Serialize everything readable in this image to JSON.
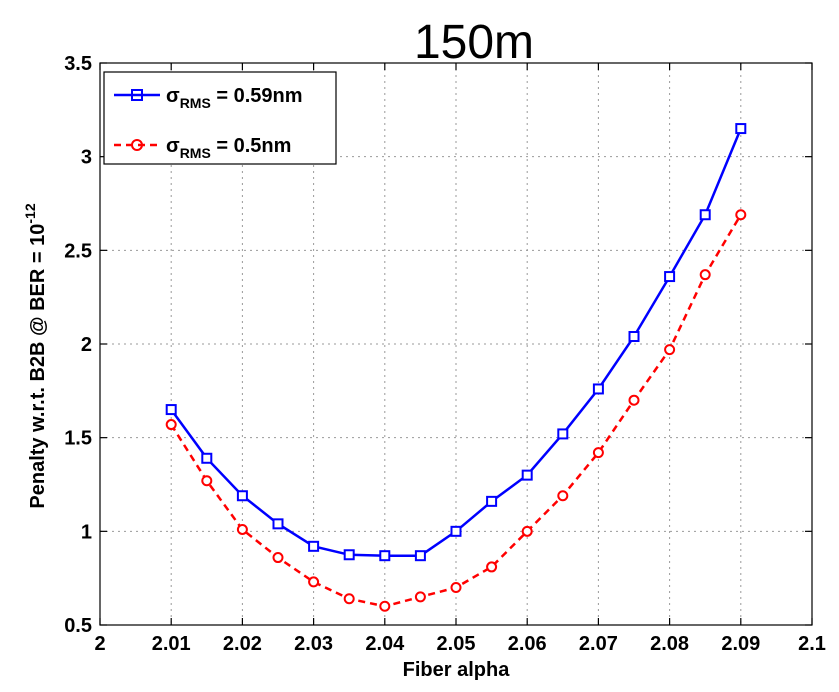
{
  "chart_data": {
    "type": "line",
    "title": "150m",
    "xlabel": "Fiber alpha",
    "ylabel": {
      "prefix": "Penalty w.r.t. B2B @ BER = 10",
      "exponent": "-12"
    },
    "xlim": [
      2.0,
      2.1
    ],
    "ylim": [
      0.5,
      3.5
    ],
    "xticks": [
      2.0,
      2.01,
      2.02,
      2.03,
      2.04,
      2.05,
      2.06,
      2.07,
      2.08,
      2.09,
      2.1
    ],
    "xtick_labels": [
      "2",
      "2.01",
      "2.02",
      "2.03",
      "2.04",
      "2.05",
      "2.06",
      "2.07",
      "2.08",
      "2.09",
      "2.1"
    ],
    "yticks": [
      0.5,
      1.0,
      1.5,
      2.0,
      2.5,
      3.0,
      3.5
    ],
    "ytick_labels": [
      "0.5",
      "1",
      "1.5",
      "2",
      "2.5",
      "3",
      "3.5"
    ],
    "grid": true,
    "legend_position": "top-left",
    "series": [
      {
        "name": {
          "symbol": "σ",
          "subscript": "RMS",
          "rest": " = 0.59nm"
        },
        "color": "#0000ff",
        "line_style": "solid",
        "marker": "square",
        "x": [
          2.01,
          2.015,
          2.02,
          2.025,
          2.03,
          2.035,
          2.04,
          2.045,
          2.05,
          2.055,
          2.06,
          2.065,
          2.07,
          2.075,
          2.08,
          2.085,
          2.09
        ],
        "y": [
          1.65,
          1.39,
          1.19,
          1.04,
          0.92,
          0.875,
          0.87,
          0.87,
          1.0,
          1.16,
          1.3,
          1.52,
          1.76,
          2.04,
          2.36,
          2.69,
          3.15
        ]
      },
      {
        "name": {
          "symbol": "σ",
          "subscript": "RMS",
          "rest": " = 0.5nm"
        },
        "color": "#ff0000",
        "line_style": "dashed",
        "marker": "circle",
        "x": [
          2.01,
          2.015,
          2.02,
          2.025,
          2.03,
          2.035,
          2.04,
          2.045,
          2.05,
          2.055,
          2.06,
          2.065,
          2.07,
          2.075,
          2.08,
          2.085,
          2.09
        ],
        "y": [
          1.57,
          1.27,
          1.01,
          0.86,
          0.73,
          0.64,
          0.6,
          0.65,
          0.7,
          0.81,
          1.0,
          1.19,
          1.42,
          1.7,
          1.97,
          2.37,
          2.69
        ]
      }
    ]
  }
}
